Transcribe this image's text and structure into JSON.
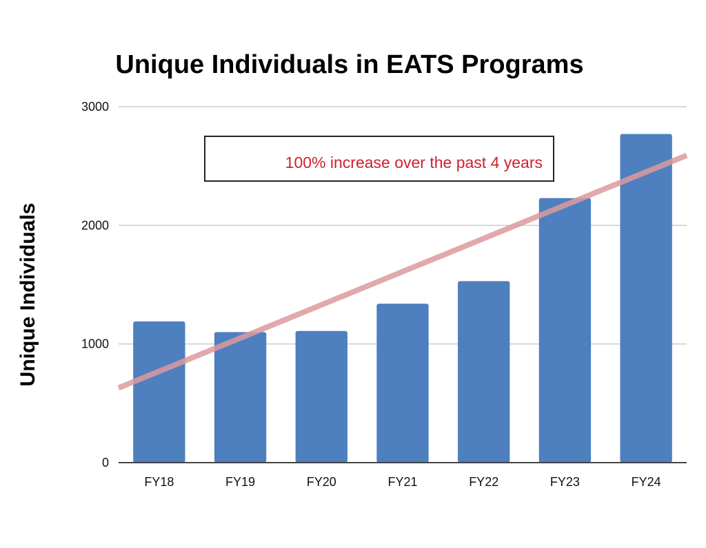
{
  "chart_data": {
    "type": "bar",
    "title": "Unique Individuals in EATS Programs",
    "ylabel": "Unique Individuals",
    "categories": [
      "FY18",
      "FY19",
      "FY20",
      "FY21",
      "FY22",
      "FY23",
      "FY24"
    ],
    "values": [
      1190,
      1100,
      1110,
      1340,
      1530,
      2230,
      2770
    ],
    "ylim": [
      0,
      3000
    ],
    "yticks": [
      0,
      1000,
      2000,
      3000
    ],
    "ytick_labels": [
      "0",
      "1000",
      "2000",
      "3000"
    ],
    "grid": true,
    "legend": "none",
    "annotation": {
      "text": "100% increase over the past 4 years",
      "color": "#d0202f"
    },
    "trendline": {
      "color": "#dc9a9c",
      "start_value": 630,
      "end_value": 2590
    },
    "colors": {
      "bar": "#4e7fbf",
      "grid": "#cccccc",
      "axis": "#444444"
    }
  }
}
